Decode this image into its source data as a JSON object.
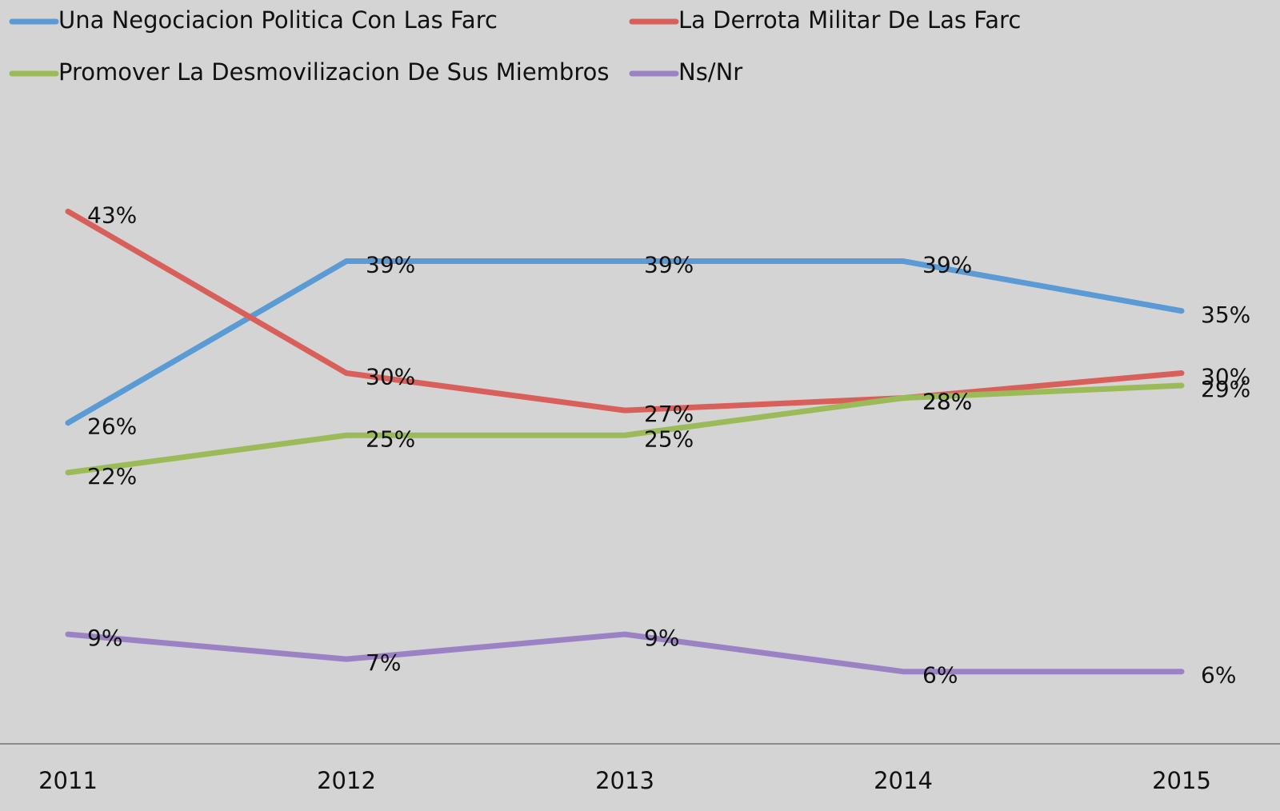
{
  "chart_data": {
    "type": "line",
    "categories": [
      "2011",
      "2012",
      "2013",
      "2014",
      "2015"
    ],
    "ylim": [
      0,
      60
    ],
    "series": [
      {
        "name": "Una Negociacion Politica Con Las Farc",
        "color": "#5b9bd5",
        "values": [
          26,
          39,
          39,
          39,
          35
        ],
        "value_labels": [
          "26%",
          "39%",
          "39%",
          "39%",
          "35%"
        ]
      },
      {
        "name": "La Derrota Militar De Las Farc",
        "color": "#d9605a",
        "values": [
          43,
          30,
          27,
          28,
          30
        ],
        "value_labels": [
          "43%",
          "30%",
          "27%",
          "28%",
          "30%"
        ]
      },
      {
        "name": "Promover La Desmovilizacion De Sus Miembros",
        "color": "#9bbb59",
        "values": [
          22,
          25,
          25,
          28,
          29
        ],
        "value_labels": [
          "22%",
          "25%",
          "25%",
          "28%",
          "29%"
        ]
      },
      {
        "name": "Ns/Nr",
        "color": "#9b82c5",
        "values": [
          9,
          7,
          9,
          6,
          6
        ],
        "value_labels": [
          "9%",
          "7%",
          "9%",
          "6%",
          "6%"
        ]
      }
    ]
  }
}
